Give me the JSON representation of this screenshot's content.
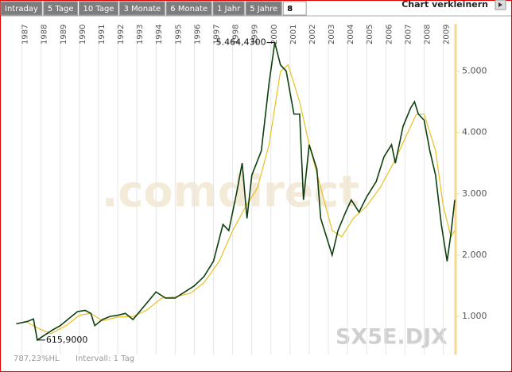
{
  "tabs": [
    "Intraday",
    "5 Tage",
    "10 Tage",
    "3 Monate",
    "6 Monate",
    "1 Jahr",
    "5 Jahre",
    "8"
  ],
  "button": "Chart verkleinern",
  "chart_data": {
    "type": "line",
    "xlim": [
      1986.6,
      2009.6
    ],
    "xticks": [
      1987,
      1988,
      1989,
      1990,
      1991,
      1992,
      1993,
      1994,
      1995,
      1996,
      1997,
      1998,
      1999,
      2000,
      2001,
      2002,
      2003,
      2004,
      2005,
      2006,
      2007,
      2008,
      2009
    ],
    "ylim": [
      380,
      5770
    ],
    "yticks": [
      {
        "value": 1000,
        "label": "1.000"
      },
      {
        "value": 2000,
        "label": "2.000"
      },
      {
        "value": 3000,
        "label": "3.000"
      },
      {
        "value": 4000,
        "label": "4.000"
      },
      {
        "value": 5000,
        "label": "5.000"
      }
    ],
    "grid": "x",
    "series": [
      {
        "color": "#0d3f0d",
        "x": [
          1986.7,
          1987.0,
          1987.3,
          1987.6,
          1987.8,
          1988.2,
          1988.6,
          1989.0,
          1989.5,
          1989.9,
          1990.3,
          1990.6,
          1990.8,
          1991.2,
          1991.6,
          1992.0,
          1992.4,
          1992.8,
          1993.2,
          1993.6,
          1994.0,
          1994.5,
          1995.0,
          1995.5,
          1996.0,
          1996.5,
          1997.0,
          1997.5,
          1997.8,
          1998.2,
          1998.5,
          1998.75,
          1999.0,
          1999.5,
          1999.9,
          2000.2,
          2000.5,
          2000.8,
          2001.2,
          2001.5,
          2001.7,
          2002.0,
          2002.4,
          2002.6,
          2002.8,
          2003.2,
          2003.5,
          2003.9,
          2004.2,
          2004.6,
          2005.0,
          2005.5,
          2005.9,
          2006.3,
          2006.5,
          2006.9,
          2007.3,
          2007.5,
          2007.7,
          2008.0,
          2008.3,
          2008.6,
          2008.9,
          2009.2,
          2009.4,
          2009.6
        ],
        "values": [
          880,
          900,
          920,
          960,
          615.9,
          700,
          780,
          850,
          980,
          1080,
          1100,
          1050,
          850,
          950,
          1000,
          1020,
          1050,
          950,
          1100,
          1250,
          1400,
          1300,
          1300,
          1400,
          1500,
          1650,
          1900,
          2500,
          2400,
          3000,
          3500,
          2600,
          3300,
          3700,
          4800,
          5464.43,
          5100,
          5000,
          4300,
          4300,
          2900,
          3800,
          3400,
          2600,
          2400,
          2000,
          2400,
          2700,
          2900,
          2700,
          2950,
          3200,
          3600,
          3800,
          3500,
          4100,
          4400,
          4500,
          4300,
          4200,
          3700,
          3300,
          2500,
          1900,
          2350,
          2900
        ]
      },
      {
        "color": "#e8c020",
        "x": [
          1987.3,
          1987.9,
          1988.5,
          1989.3,
          1990.0,
          1990.6,
          1991.2,
          1992.0,
          1992.8,
          1993.5,
          1994.3,
          1995.0,
          1995.8,
          1996.5,
          1997.3,
          1998.0,
          1998.7,
          1999.3,
          1999.9,
          2000.5,
          2000.9,
          2001.5,
          2002.0,
          2002.6,
          2003.2,
          2003.7,
          2004.3,
          2005.0,
          2005.7,
          2006.4,
          2007.0,
          2007.6,
          2008.0,
          2008.6,
          2009.0,
          2009.4,
          2009.6
        ],
        "values": [
          900,
          800,
          720,
          850,
          1020,
          1050,
          930,
          990,
          1000,
          1100,
          1300,
          1320,
          1380,
          1550,
          1900,
          2400,
          2800,
          3100,
          3800,
          5000,
          5100,
          4500,
          3800,
          3100,
          2400,
          2300,
          2600,
          2800,
          3100,
          3500,
          3900,
          4300,
          4300,
          3700,
          2800,
          2300,
          2400
        ]
      }
    ],
    "annotations": [
      {
        "text": "5.464,4300",
        "x": 2000.2,
        "y": 5464.43,
        "side": "left"
      },
      {
        "text": "615,9000",
        "x": 1987.8,
        "y": 615.9,
        "side": "right"
      }
    ],
    "watermark": ".comdirect",
    "symbol": "SX5E.DJX"
  },
  "footer": {
    "range": "787,23%HL",
    "interval": "Intervall: 1 Tag"
  }
}
